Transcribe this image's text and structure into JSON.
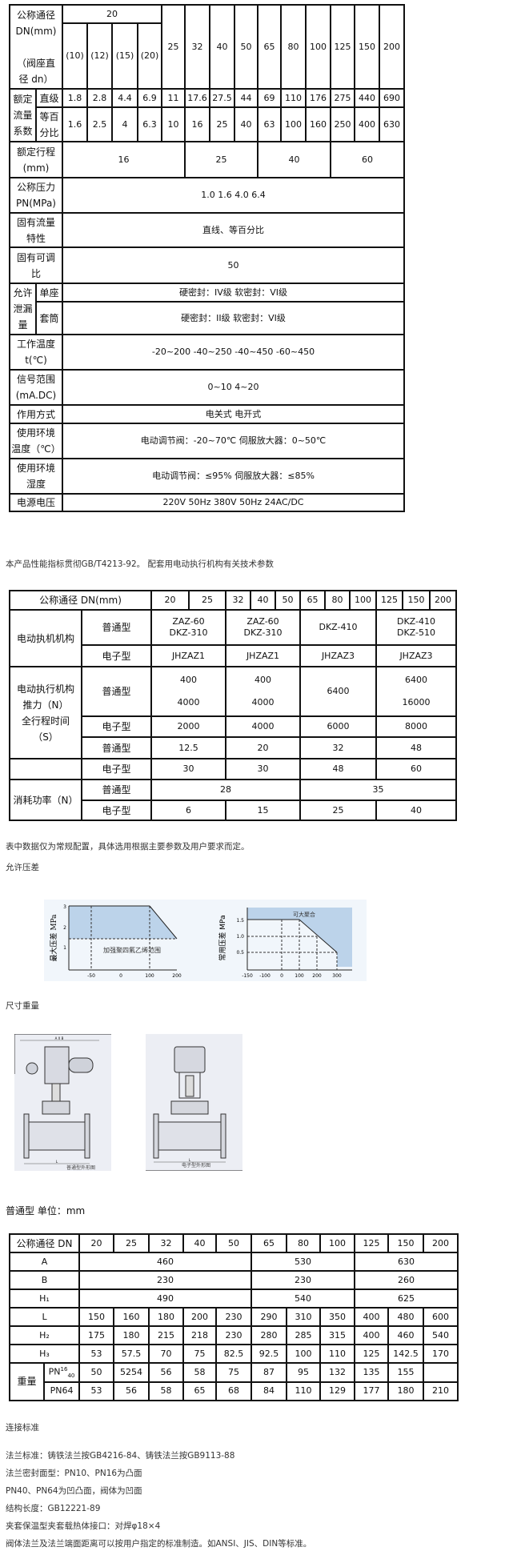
{
  "table1": {
    "rows": [
      [
        {
          "t": "公称通径\nDN(mm)\n\n（阀座直\n径 dn）",
          "cs": 2,
          "rs": 2,
          "l": 1
        },
        {
          "t": "20",
          "cs": 4
        },
        {
          "t": "25",
          "rs": 2
        },
        {
          "t": "32",
          "rs": 2
        },
        {
          "t": "40",
          "rs": 2
        },
        {
          "t": "50",
          "rs": 2
        },
        {
          "t": "65",
          "rs": 2
        },
        {
          "t": "80",
          "rs": 2
        },
        {
          "t": "100",
          "rs": 2
        },
        {
          "t": "125",
          "rs": 2
        },
        {
          "t": "150",
          "rs": 2
        },
        {
          "t": "200",
          "rs": 2
        }
      ],
      [
        {
          "t": "(10)"
        },
        {
          "t": "(12)"
        },
        {
          "t": "(15)"
        },
        {
          "t": "(20)"
        }
      ],
      [
        {
          "t": "额定\n流量\n系数",
          "rs": 2,
          "l": 1
        },
        {
          "t": "直级",
          "l": 1
        },
        {
          "t": "1.8"
        },
        {
          "t": "2.8"
        },
        {
          "t": "4.4"
        },
        {
          "t": "6.9"
        },
        {
          "t": "11"
        },
        {
          "t": "17.6"
        },
        {
          "t": "27.5"
        },
        {
          "t": "44"
        },
        {
          "t": "69"
        },
        {
          "t": "110"
        },
        {
          "t": "176"
        },
        {
          "t": "275"
        },
        {
          "t": "440"
        },
        {
          "t": "690"
        }
      ],
      [
        {
          "t": "等百\n分比",
          "l": 1
        },
        {
          "t": "1.6"
        },
        {
          "t": "2.5"
        },
        {
          "t": "4"
        },
        {
          "t": "6.3"
        },
        {
          "t": "10"
        },
        {
          "t": "16"
        },
        {
          "t": "25"
        },
        {
          "t": "40"
        },
        {
          "t": "63"
        },
        {
          "t": "100"
        },
        {
          "t": "160"
        },
        {
          "t": "250"
        },
        {
          "t": "400"
        },
        {
          "t": "630"
        }
      ],
      [
        {
          "t": "额定行程\n(mm)",
          "cs": 2,
          "l": 1
        },
        {
          "t": "16",
          "cs": 5
        },
        {
          "t": "25",
          "cs": 3
        },
        {
          "t": "40",
          "cs": 3
        },
        {
          "t": "60",
          "cs": 3
        }
      ],
      [
        {
          "t": "公称压力\nPN(MPa)",
          "cs": 2,
          "l": 1
        },
        {
          "t": "1.0 1.6 4.0 6.4",
          "cs": 14
        }
      ],
      [
        {
          "t": "固有流量\n特性",
          "cs": 2,
          "l": 1
        },
        {
          "t": "直线、等百分比",
          "cs": 14
        }
      ],
      [
        {
          "t": "固有可调\n比",
          "cs": 2,
          "l": 1
        },
        {
          "t": "50",
          "cs": 14
        }
      ],
      [
        {
          "t": "允许\n泄漏\n量",
          "rs": 2,
          "l": 1
        },
        {
          "t": "单座",
          "l": 1
        },
        {
          "t": "硬密封：IV级 软密封：VI级",
          "cs": 14
        }
      ],
      [
        {
          "t": "套筒",
          "l": 1
        },
        {
          "t": "硬密封：II级 软密封：VI级",
          "cs": 14
        }
      ],
      [
        {
          "t": "工作温度\nt(℃)",
          "cs": 2,
          "l": 1
        },
        {
          "t": "-20~200 -40~250 -40~450 -60~450",
          "cs": 14
        }
      ],
      [
        {
          "t": "信号范围\n(mA.DC)",
          "cs": 2,
          "l": 1
        },
        {
          "t": "0~10 4~20",
          "cs": 14
        }
      ],
      [
        {
          "t": "作用方式",
          "cs": 2,
          "l": 1
        },
        {
          "t": "电关式 电开式",
          "cs": 14
        }
      ],
      [
        {
          "t": "使用环境\n温度（℃）",
          "cs": 2,
          "l": 1
        },
        {
          "t": "电动调节阀：-20~70℃ 伺服放大器：0~50℃",
          "cs": 14
        }
      ],
      [
        {
          "t": "使用环境\n湿度",
          "cs": 2,
          "l": 1
        },
        {
          "t": "电动调节阀：≤95% 伺服放大器：≤85%",
          "cs": 14
        }
      ],
      [
        {
          "t": "电源电压",
          "cs": 2,
          "l": 1
        },
        {
          "t": "220V 50Hz 380V 50Hz 24AC/DC",
          "cs": 14
        }
      ]
    ]
  },
  "note1": "本产品性能指标贯彻GB/T4213-92。 配套用电动执行机构有关技术参数",
  "table2": {
    "rows": [
      [
        {
          "t": "公称通径 DN(mm)",
          "cs": 2,
          "l": 1
        },
        {
          "t": "20"
        },
        {
          "t": "25"
        },
        {
          "t": "32"
        },
        {
          "t": "40"
        },
        {
          "t": "50"
        },
        {
          "t": "65"
        },
        {
          "t": "80"
        },
        {
          "t": "100"
        },
        {
          "t": "125"
        },
        {
          "t": "150"
        },
        {
          "t": "200"
        }
      ],
      [
        {
          "t": "电动执机机构",
          "rs": 2,
          "l": 1
        },
        {
          "t": "普通型",
          "l": 1
        },
        {
          "t": "ZAZ-60\nDKZ-310",
          "cs": 2
        },
        {
          "t": "ZAZ-60\nDKZ-310",
          "cs": 3
        },
        {
          "t": "DKZ-410",
          "cs": 3
        },
        {
          "t": "DKZ-410\nDKZ-510",
          "cs": 3
        }
      ],
      [
        {
          "t": "电子型",
          "l": 1
        },
        {
          "t": "JHZAZ1",
          "cs": 2
        },
        {
          "t": "JHZAZ1",
          "cs": 3
        },
        {
          "t": "JHZAZ3",
          "cs": 3
        },
        {
          "t": "JHZAZ3",
          "cs": 3
        }
      ],
      [
        {
          "t": "电动执行机构\n推力（N）\n全行程时间\n（S）",
          "rs": 3,
          "l": 1
        },
        {
          "t": "普通型",
          "l": 1
        },
        {
          "t": "400\n\n4000",
          "cs": 2
        },
        {
          "t": "400\n\n4000",
          "cs": 3
        },
        {
          "t": "6400",
          "cs": 3
        },
        {
          "t": "6400\n\n16000",
          "cs": 3
        }
      ],
      [
        {
          "t": "电子型",
          "l": 1
        },
        {
          "t": "2000",
          "cs": 2
        },
        {
          "t": "4000",
          "cs": 3
        },
        {
          "t": "6000",
          "cs": 3
        },
        {
          "t": "8000",
          "cs": 3
        }
      ],
      [
        {
          "t": "普通型",
          "l": 1
        },
        {
          "t": "12.5",
          "cs": 2
        },
        {
          "t": "20",
          "cs": 3
        },
        {
          "t": "32",
          "cs": 3
        },
        {
          "t": "48",
          "cs": 3
        }
      ],
      [
        {
          "t": ""
        },
        {
          "t": "电子型",
          "l": 1
        },
        {
          "t": "30",
          "cs": 2
        },
        {
          "t": "30",
          "cs": 3
        },
        {
          "t": "48",
          "cs": 3
        },
        {
          "t": "60",
          "cs": 3
        }
      ],
      [
        {
          "t": "消耗功率（N）",
          "rs": 2,
          "l": 1
        },
        {
          "t": "普通型",
          "l": 1
        },
        {
          "t": "28",
          "cs": 5
        },
        {
          "t": "35",
          "cs": 6
        }
      ],
      [
        {
          "t": "电子型",
          "l": 1
        },
        {
          "t": "6",
          "cs": 2
        },
        {
          "t": "15",
          "cs": 3
        },
        {
          "t": "25",
          "cs": 3
        },
        {
          "t": "40",
          "cs": 3
        }
      ]
    ]
  },
  "note2": "表中数据仅为常规配置，具体选用根据主要参数及用户要求而定。",
  "section_pressure": "允许压差",
  "figure_left": {
    "ylabel": "最大压差 MPa",
    "yticks": [
      "3",
      "2",
      "1"
    ],
    "xticks": [
      "-50",
      "0",
      "100",
      "200"
    ],
    "region_label": "加强聚四氟乙烯范围",
    "fill": "#bcd3ea"
  },
  "figure_right": {
    "ylabel": "常用压差 MPa",
    "yticks": [
      "1.5",
      "1.0",
      "0.5"
    ],
    "xticks": [
      "-150",
      "-100",
      "0",
      "100",
      "200",
      "300"
    ],
    "region_label": "可大聚合",
    "fill": "#bcd3ea"
  },
  "section_dims": "尺寸重量",
  "drawing_left": {
    "caption": "普通型外形图",
    "dim_top": "A X B",
    "dim_bottom": "L"
  },
  "drawing_right": {
    "caption": "电子型外形图",
    "dim_bottom": "L"
  },
  "table3_title": "普通型 单位：mm",
  "table3": {
    "rows": [
      [
        {
          "t": "公称通径 DN",
          "cs": 2,
          "l": 1
        },
        {
          "t": "20"
        },
        {
          "t": "25"
        },
        {
          "t": "32"
        },
        {
          "t": "40"
        },
        {
          "t": "50"
        },
        {
          "t": "65"
        },
        {
          "t": "80"
        },
        {
          "t": "100"
        },
        {
          "t": "125"
        },
        {
          "t": "150"
        },
        {
          "t": "200"
        }
      ],
      [
        {
          "t": "A",
          "cs": 2
        },
        {
          "t": "460",
          "cs": 5
        },
        {
          "t": "530",
          "cs": 3
        },
        {
          "t": "630",
          "cs": 3
        }
      ],
      [
        {
          "t": "B",
          "cs": 2
        },
        {
          "t": "230",
          "cs": 5
        },
        {
          "t": "230",
          "cs": 3
        },
        {
          "t": "260",
          "cs": 3
        }
      ],
      [
        {
          "t": "H₁",
          "cs": 2
        },
        {
          "t": "490",
          "cs": 5
        },
        {
          "t": "540",
          "cs": 3
        },
        {
          "t": "625",
          "cs": 3
        }
      ],
      [
        {
          "t": "L",
          "cs": 2
        },
        {
          "t": "150"
        },
        {
          "t": "160"
        },
        {
          "t": "180"
        },
        {
          "t": "200"
        },
        {
          "t": "230"
        },
        {
          "t": "290"
        },
        {
          "t": "310"
        },
        {
          "t": "350"
        },
        {
          "t": "400"
        },
        {
          "t": "480"
        },
        {
          "t": "600"
        }
      ],
      [
        {
          "t": "H₂",
          "cs": 2
        },
        {
          "t": "175"
        },
        {
          "t": "180"
        },
        {
          "t": "215"
        },
        {
          "t": "218"
        },
        {
          "t": "230"
        },
        {
          "t": "280"
        },
        {
          "t": "285"
        },
        {
          "t": "315"
        },
        {
          "t": "400"
        },
        {
          "t": "460"
        },
        {
          "t": "540"
        }
      ],
      [
        {
          "t": "H₃",
          "cs": 2
        },
        {
          "t": "53"
        },
        {
          "t": "57.5"
        },
        {
          "t": "70"
        },
        {
          "t": "75"
        },
        {
          "t": "82.5"
        },
        {
          "t": "92.5"
        },
        {
          "t": "100"
        },
        {
          "t": "110"
        },
        {
          "t": "125"
        },
        {
          "t": "142.5"
        },
        {
          "t": "170"
        }
      ],
      [
        {
          "t": "重量",
          "rs": 2,
          "l": 1
        },
        {
          "t": "PN",
          "sup": "16",
          "sub": "40"
        },
        {
          "t": "50"
        },
        {
          "t": "5254"
        },
        {
          "t": "56"
        },
        {
          "t": "58"
        },
        {
          "t": "75"
        },
        {
          "t": "87"
        },
        {
          "t": "95"
        },
        {
          "t": "132"
        },
        {
          "t": "135"
        },
        {
          "t": "155"
        },
        {
          "t": ""
        }
      ],
      [
        {
          "t": "PN64"
        },
        {
          "t": "53"
        },
        {
          "t": "56"
        },
        {
          "t": "58"
        },
        {
          "t": "65"
        },
        {
          "t": "68"
        },
        {
          "t": "84"
        },
        {
          "t": "110"
        },
        {
          "t": "129"
        },
        {
          "t": "177"
        },
        {
          "t": "180"
        },
        {
          "t": "210"
        }
      ]
    ]
  },
  "section_connect": "连接标准",
  "connect_lines": [
    "法兰标准：铸铁法兰按GB4216-84、铸铁法兰按GB9113-88",
    "法兰密封面型：PN10、PN16为凸面",
    "PN40、PN64为凹凸面，阀体为凹面",
    "结构长度：GB12221-89",
    "夹套保温型夹套载热体接口：对焊φ18×4",
    "阀体法兰及法兰端面距离可以按用户指定的标准制造。如ANSI、JIS、DIN等标准。"
  ]
}
